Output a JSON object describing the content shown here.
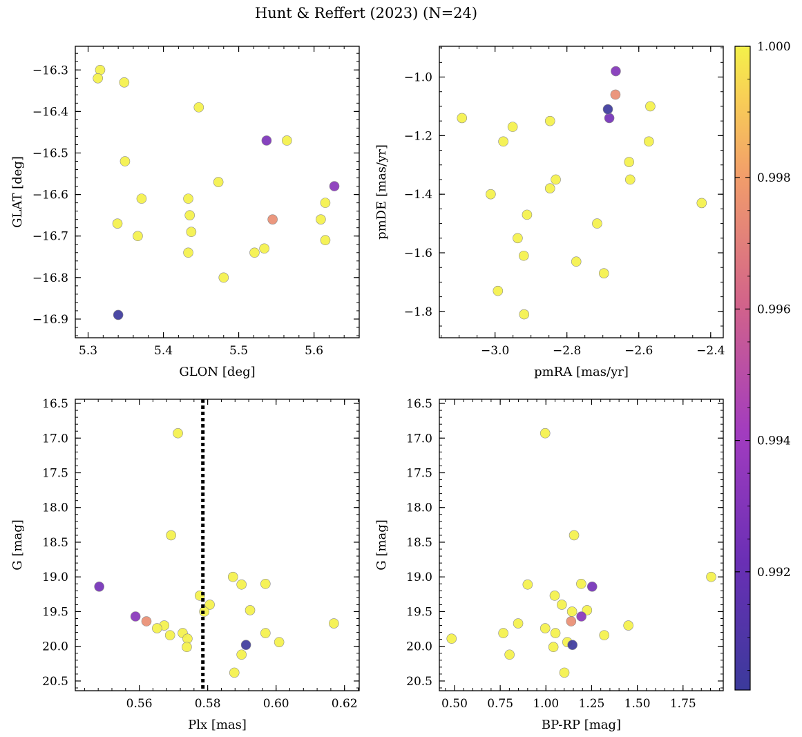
{
  "figure": {
    "title": "Hunt & Reffert (2023) (N=24)"
  },
  "colormap": {
    "name": "plasma",
    "range": [
      0.9902,
      1.0
    ],
    "ticks": [
      0.992,
      0.994,
      0.996,
      0.998,
      1.0
    ],
    "tick_labels": [
      "0.992",
      "0.994",
      "0.996",
      "0.998",
      "1.000"
    ]
  },
  "chart_data": [
    {
      "type": "scatter",
      "id": "glon-glat",
      "xlabel": "GLON [deg]",
      "ylabel": "GLAT [deg]",
      "xlim": [
        5.283,
        5.66
      ],
      "ylim": [
        -16.945,
        -16.243
      ],
      "y_inverted": false,
      "xticks": [
        5.3,
        5.4,
        5.5,
        5.6
      ],
      "xtick_labels": [
        "5.3",
        "5.4",
        "5.5",
        "5.6"
      ],
      "xminor_step": 0.02,
      "yticks": [
        -16.9,
        -16.8,
        -16.7,
        -16.6,
        -16.5,
        -16.4,
        -16.3
      ],
      "ytick_labels": [
        "−16.9",
        "−16.8",
        "−16.7",
        "−16.6",
        "−16.5",
        "−16.4",
        "−16.3"
      ],
      "yminor_step": 0.02,
      "points": [
        {
          "x": 5.316,
          "y": -16.3,
          "c": 1.0
        },
        {
          "x": 5.313,
          "y": -16.32,
          "c": 1.0
        },
        {
          "x": 5.348,
          "y": -16.33,
          "c": 1.0
        },
        {
          "x": 5.447,
          "y": -16.39,
          "c": 1.0
        },
        {
          "x": 5.537,
          "y": -16.47,
          "c": 0.9928
        },
        {
          "x": 5.564,
          "y": -16.47,
          "c": 1.0
        },
        {
          "x": 5.349,
          "y": -16.52,
          "c": 1.0
        },
        {
          "x": 5.473,
          "y": -16.57,
          "c": 1.0
        },
        {
          "x": 5.627,
          "y": -16.58,
          "c": 0.9932
        },
        {
          "x": 5.371,
          "y": -16.61,
          "c": 1.0
        },
        {
          "x": 5.433,
          "y": -16.61,
          "c": 1.0
        },
        {
          "x": 5.615,
          "y": -16.62,
          "c": 1.0
        },
        {
          "x": 5.435,
          "y": -16.65,
          "c": 1.0
        },
        {
          "x": 5.545,
          "y": -16.66,
          "c": 0.9975
        },
        {
          "x": 5.609,
          "y": -16.66,
          "c": 1.0
        },
        {
          "x": 5.339,
          "y": -16.67,
          "c": 1.0
        },
        {
          "x": 5.437,
          "y": -16.69,
          "c": 1.0
        },
        {
          "x": 5.366,
          "y": -16.7,
          "c": 1.0
        },
        {
          "x": 5.615,
          "y": -16.71,
          "c": 1.0
        },
        {
          "x": 5.534,
          "y": -16.73,
          "c": 1.0
        },
        {
          "x": 5.433,
          "y": -16.74,
          "c": 1.0
        },
        {
          "x": 5.521,
          "y": -16.74,
          "c": 1.0
        },
        {
          "x": 5.48,
          "y": -16.8,
          "c": 1.0
        },
        {
          "x": 5.34,
          "y": -16.89,
          "c": 0.9903
        }
      ]
    },
    {
      "type": "scatter",
      "id": "pm",
      "xlabel": "pmRA [mas/yr]",
      "ylabel": "pmDE [mas/yr]",
      "xlim": [
        -3.155,
        -2.365
      ],
      "ylim": [
        -1.89,
        -0.895
      ],
      "y_inverted": false,
      "xticks": [
        -3.0,
        -2.8,
        -2.6,
        -2.4
      ],
      "xtick_labels": [
        "−3.0",
        "−2.8",
        "−2.6",
        "−2.4"
      ],
      "xminor_step": 0.05,
      "yticks": [
        -1.8,
        -1.6,
        -1.4,
        -1.2,
        -1.0
      ],
      "ytick_labels": [
        "−1.8",
        "−1.6",
        "−1.4",
        "−1.2",
        "−1.0"
      ],
      "yminor_step": 0.05,
      "points": [
        {
          "x": -2.664,
          "y": -0.98,
          "c": 0.993
        },
        {
          "x": -2.665,
          "y": -1.06,
          "c": 0.9975
        },
        {
          "x": -2.686,
          "y": -1.11,
          "c": 0.9903
        },
        {
          "x": -2.682,
          "y": -1.14,
          "c": 0.9925
        },
        {
          "x": -3.092,
          "y": -1.14,
          "c": 1.0
        },
        {
          "x": -2.847,
          "y": -1.15,
          "c": 1.0
        },
        {
          "x": -2.951,
          "y": -1.17,
          "c": 1.0
        },
        {
          "x": -2.568,
          "y": -1.1,
          "c": 1.0
        },
        {
          "x": -2.977,
          "y": -1.22,
          "c": 1.0
        },
        {
          "x": -2.572,
          "y": -1.22,
          "c": 1.0
        },
        {
          "x": -2.627,
          "y": -1.29,
          "c": 1.0
        },
        {
          "x": -2.624,
          "y": -1.35,
          "c": 1.0
        },
        {
          "x": -2.831,
          "y": -1.35,
          "c": 1.0
        },
        {
          "x": -2.847,
          "y": -1.38,
          "c": 1.0
        },
        {
          "x": -3.012,
          "y": -1.4,
          "c": 1.0
        },
        {
          "x": -2.425,
          "y": -1.43,
          "c": 1.0
        },
        {
          "x": -2.911,
          "y": -1.47,
          "c": 1.0
        },
        {
          "x": -2.716,
          "y": -1.5,
          "c": 1.0
        },
        {
          "x": -2.937,
          "y": -1.55,
          "c": 1.0
        },
        {
          "x": -2.92,
          "y": -1.61,
          "c": 1.0
        },
        {
          "x": -2.774,
          "y": -1.63,
          "c": 1.0
        },
        {
          "x": -2.697,
          "y": -1.67,
          "c": 1.0
        },
        {
          "x": -2.992,
          "y": -1.73,
          "c": 1.0
        },
        {
          "x": -2.919,
          "y": -1.81,
          "c": 1.0
        }
      ]
    },
    {
      "type": "scatter",
      "id": "plx-g",
      "xlabel": "Plx [mas]",
      "ylabel": "G [mag]",
      "xlim": [
        0.5413,
        0.6243
      ],
      "ylim": [
        16.44,
        20.64
      ],
      "y_inverted": true,
      "vline": {
        "x": 0.5786,
        "style": "dotted"
      },
      "xticks": [
        0.56,
        0.58,
        0.6,
        0.62
      ],
      "xtick_labels": [
        "0.56",
        "0.58",
        "0.60",
        "0.62"
      ],
      "xminor_step": 0.004,
      "yticks": [
        16.5,
        17.0,
        17.5,
        18.0,
        18.5,
        19.0,
        19.5,
        20.0,
        20.5
      ],
      "ytick_labels": [
        "16.5",
        "17.0",
        "17.5",
        "18.0",
        "18.5",
        "19.0",
        "19.5",
        "20.0",
        "20.5"
      ],
      "yminor_step": 0.1,
      "points": [
        {
          "x": 0.5713,
          "y": 16.93,
          "c": 1.0
        },
        {
          "x": 0.5693,
          "y": 18.4,
          "c": 1.0
        },
        {
          "x": 0.5874,
          "y": 19.0,
          "c": 1.0
        },
        {
          "x": 0.5969,
          "y": 19.1,
          "c": 1.0
        },
        {
          "x": 0.5899,
          "y": 19.11,
          "c": 1.0
        },
        {
          "x": 0.5483,
          "y": 19.14,
          "c": 0.9925
        },
        {
          "x": 0.5777,
          "y": 19.27,
          "c": 1.0
        },
        {
          "x": 0.5806,
          "y": 19.4,
          "c": 1.0
        },
        {
          "x": 0.5924,
          "y": 19.48,
          "c": 1.0
        },
        {
          "x": 0.579,
          "y": 19.5,
          "c": 1.0
        },
        {
          "x": 0.5589,
          "y": 19.57,
          "c": 0.9932
        },
        {
          "x": 0.5621,
          "y": 19.64,
          "c": 0.9975
        },
        {
          "x": 0.6169,
          "y": 19.67,
          "c": 1.0
        },
        {
          "x": 0.5673,
          "y": 19.7,
          "c": 1.0
        },
        {
          "x": 0.5652,
          "y": 19.74,
          "c": 1.0
        },
        {
          "x": 0.5969,
          "y": 19.81,
          "c": 1.0
        },
        {
          "x": 0.5727,
          "y": 19.81,
          "c": 1.0
        },
        {
          "x": 0.569,
          "y": 19.84,
          "c": 1.0
        },
        {
          "x": 0.5741,
          "y": 19.89,
          "c": 1.0
        },
        {
          "x": 0.6009,
          "y": 19.94,
          "c": 1.0
        },
        {
          "x": 0.5912,
          "y": 19.98,
          "c": 0.9903
        },
        {
          "x": 0.5739,
          "y": 20.01,
          "c": 1.0
        },
        {
          "x": 0.5899,
          "y": 20.12,
          "c": 1.0
        },
        {
          "x": 0.5878,
          "y": 20.38,
          "c": 1.0
        }
      ]
    },
    {
      "type": "scatter",
      "id": "color-g",
      "xlabel": "BP-RP [mag]",
      "ylabel": "G [mag]",
      "xlim": [
        0.417,
        1.97
      ],
      "ylim": [
        16.44,
        20.64
      ],
      "y_inverted": true,
      "xticks": [
        0.5,
        0.75,
        1.0,
        1.25,
        1.5,
        1.75
      ],
      "xtick_labels": [
        "0.50",
        "0.75",
        "1.00",
        "1.25",
        "1.50",
        "1.75"
      ],
      "xminor_step": 0.05,
      "yticks": [
        16.5,
        17.0,
        17.5,
        18.0,
        18.5,
        19.0,
        19.5,
        20.0,
        20.5
      ],
      "ytick_labels": [
        "16.5",
        "17.0",
        "17.5",
        "18.0",
        "18.5",
        "19.0",
        "19.5",
        "20.0",
        "20.5"
      ],
      "yminor_step": 0.1,
      "points": [
        {
          "x": 0.996,
          "y": 16.93,
          "c": 1.0
        },
        {
          "x": 1.154,
          "y": 18.4,
          "c": 1.0
        },
        {
          "x": 1.904,
          "y": 19.0,
          "c": 1.0
        },
        {
          "x": 1.193,
          "y": 19.1,
          "c": 1.0
        },
        {
          "x": 0.9,
          "y": 19.11,
          "c": 1.0
        },
        {
          "x": 1.253,
          "y": 19.14,
          "c": 0.9925
        },
        {
          "x": 1.048,
          "y": 19.27,
          "c": 1.0
        },
        {
          "x": 1.087,
          "y": 19.4,
          "c": 1.0
        },
        {
          "x": 1.225,
          "y": 19.48,
          "c": 1.0
        },
        {
          "x": 1.143,
          "y": 19.5,
          "c": 1.0
        },
        {
          "x": 1.194,
          "y": 19.57,
          "c": 0.9932
        },
        {
          "x": 1.138,
          "y": 19.64,
          "c": 0.9975
        },
        {
          "x": 0.848,
          "y": 19.67,
          "c": 1.0
        },
        {
          "x": 1.451,
          "y": 19.7,
          "c": 1.0
        },
        {
          "x": 0.996,
          "y": 19.74,
          "c": 1.0
        },
        {
          "x": 0.767,
          "y": 19.81,
          "c": 1.0
        },
        {
          "x": 1.052,
          "y": 19.81,
          "c": 1.0
        },
        {
          "x": 1.319,
          "y": 19.84,
          "c": 1.0
        },
        {
          "x": 0.484,
          "y": 19.89,
          "c": 1.0
        },
        {
          "x": 1.117,
          "y": 19.94,
          "c": 1.0
        },
        {
          "x": 1.145,
          "y": 19.98,
          "c": 0.9903
        },
        {
          "x": 1.041,
          "y": 20.01,
          "c": 1.0
        },
        {
          "x": 0.801,
          "y": 20.12,
          "c": 1.0
        },
        {
          "x": 1.101,
          "y": 20.38,
          "c": 1.0
        }
      ]
    }
  ]
}
